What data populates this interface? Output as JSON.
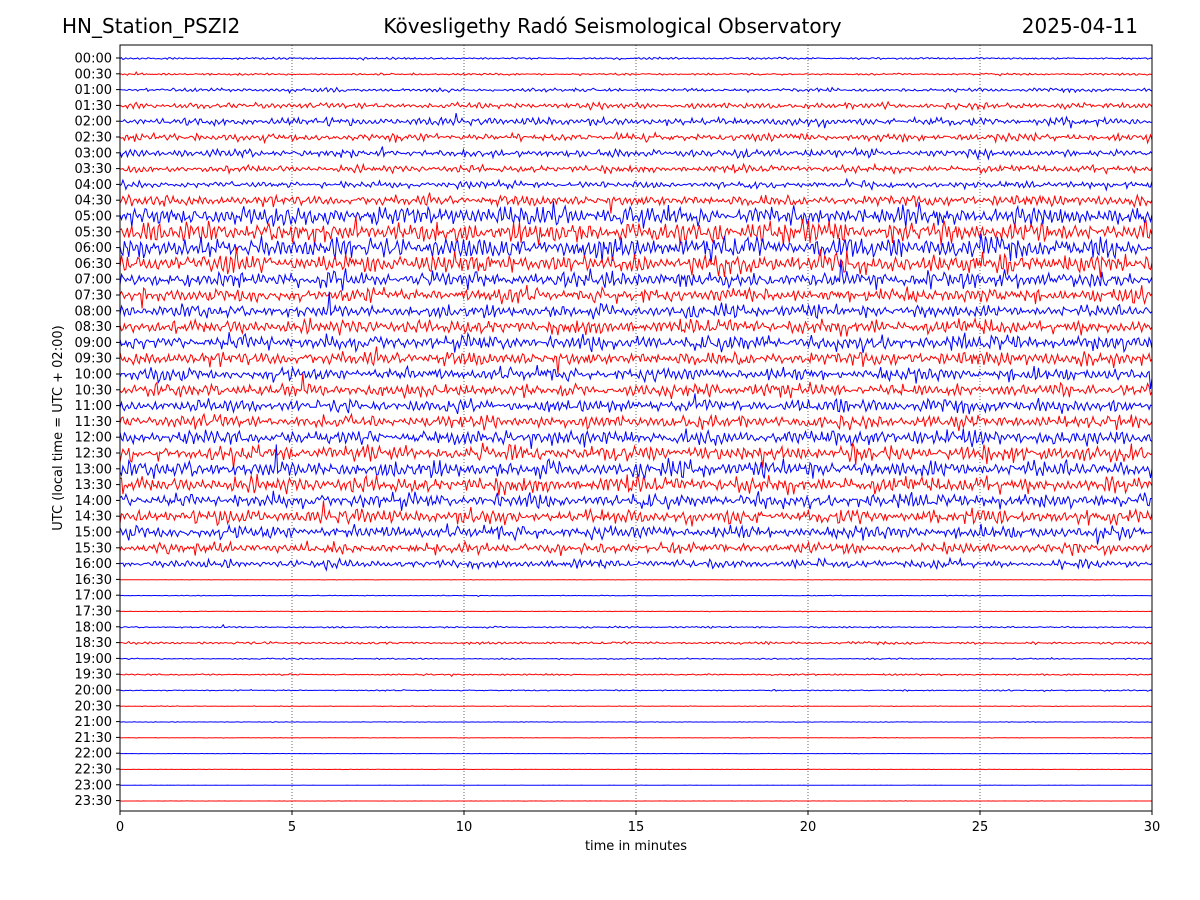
{
  "header": {
    "station": "HN_Station_PSZI2",
    "observatory": "Kövesligethy Radó Seismological Observatory",
    "date": "2025-04-11"
  },
  "chart_data": {
    "type": "line",
    "xlabel": "time in minutes",
    "ylabel": "UTC (local time = UTC + 02:00)",
    "xlim": [
      0,
      30
    ],
    "x_ticks": [
      "0",
      "5",
      "10",
      "15",
      "20",
      "25",
      "30"
    ],
    "grid": "vertical dotted lines at each 5-minute tick",
    "trace_colors": [
      "#0000ff",
      "#ff0000"
    ],
    "rows": [
      {
        "label": "00:00",
        "activity": 0.25
      },
      {
        "label": "00:30",
        "activity": 0.25
      },
      {
        "label": "01:00",
        "activity": 0.45
      },
      {
        "label": "01:30",
        "activity": 0.75
      },
      {
        "label": "02:00",
        "activity": 1.0
      },
      {
        "label": "02:30",
        "activity": 1.0
      },
      {
        "label": "03:00",
        "activity": 1.0
      },
      {
        "label": "03:30",
        "activity": 0.9
      },
      {
        "label": "04:00",
        "activity": 0.9
      },
      {
        "label": "04:30",
        "activity": 1.4
      },
      {
        "label": "05:00",
        "activity": 2.4
      },
      {
        "label": "05:30",
        "activity": 2.6
      },
      {
        "label": "06:00",
        "activity": 2.6
      },
      {
        "label": "06:30",
        "activity": 2.4
      },
      {
        "label": "07:00",
        "activity": 2.0
      },
      {
        "label": "07:30",
        "activity": 1.8
      },
      {
        "label": "08:00",
        "activity": 1.6
      },
      {
        "label": "08:30",
        "activity": 1.8
      },
      {
        "label": "09:00",
        "activity": 2.0
      },
      {
        "label": "09:30",
        "activity": 1.8
      },
      {
        "label": "10:00",
        "activity": 1.6
      },
      {
        "label": "10:30",
        "activity": 1.6
      },
      {
        "label": "11:00",
        "activity": 1.6
      },
      {
        "label": "11:30",
        "activity": 1.6
      },
      {
        "label": "12:00",
        "activity": 1.9
      },
      {
        "label": "12:30",
        "activity": 2.0
      },
      {
        "label": "13:00",
        "activity": 2.0
      },
      {
        "label": "13:30",
        "activity": 2.0
      },
      {
        "label": "14:00",
        "activity": 1.9
      },
      {
        "label": "14:30",
        "activity": 1.8
      },
      {
        "label": "15:00",
        "activity": 1.6
      },
      {
        "label": "15:30",
        "activity": 1.4
      },
      {
        "label": "16:00",
        "activity": 1.0
      },
      {
        "label": "16:30",
        "activity": 0.05
      },
      {
        "label": "17:00",
        "activity": 0.08
      },
      {
        "label": "17:30",
        "activity": 0.06
      },
      {
        "label": "18:00",
        "activity": 0.2
      },
      {
        "label": "18:30",
        "activity": 0.3
      },
      {
        "label": "19:00",
        "activity": 0.15
      },
      {
        "label": "19:30",
        "activity": 0.2
      },
      {
        "label": "20:00",
        "activity": 0.15
      },
      {
        "label": "20:30",
        "activity": 0.08
      },
      {
        "label": "21:00",
        "activity": 0.06
      },
      {
        "label": "21:30",
        "activity": 0.06
      },
      {
        "label": "22:00",
        "activity": 0.04
      },
      {
        "label": "22:30",
        "activity": 0.04
      },
      {
        "label": "23:00",
        "activity": 0.03
      },
      {
        "label": "23:30",
        "activity": 0.03
      }
    ]
  }
}
